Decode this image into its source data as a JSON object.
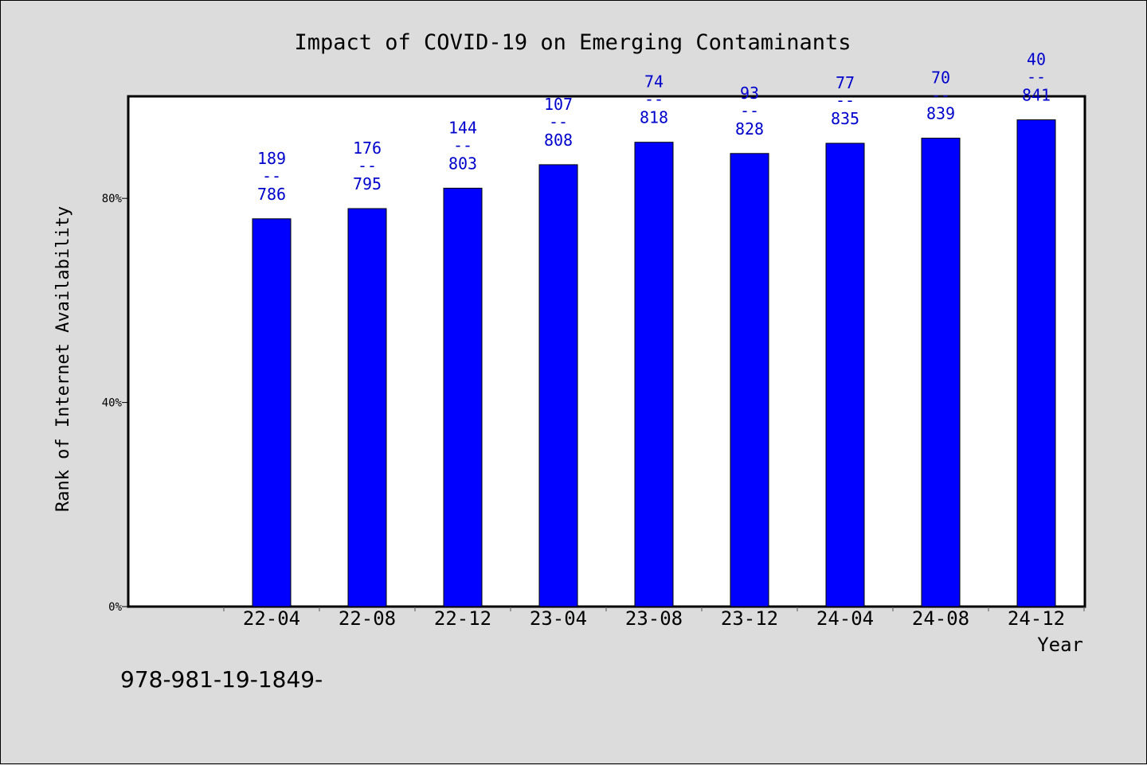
{
  "chart_data": {
    "type": "bar",
    "title": "Impact of COVID-19 on Emerging Contaminants",
    "xlabel": "Year",
    "ylabel": "Rank of Internet Availability",
    "categories": [
      "22-04",
      "22-08",
      "22-12",
      "23-04",
      "23-08",
      "23-12",
      "24-04",
      "24-08",
      "24-12"
    ],
    "values": [
      76,
      78,
      82,
      86.6,
      91,
      88.8,
      90.8,
      91.8,
      95.4
    ],
    "value_unit": "%",
    "data_labels_top": [
      "189",
      "176",
      "144",
      "107",
      "74",
      "93",
      "77",
      "70",
      "40"
    ],
    "data_labels_bottom": [
      "786",
      "795",
      "803",
      "808",
      "818",
      "828",
      "835",
      "839",
      "841"
    ],
    "data_label_separator": "--",
    "ylim": [
      0,
      100
    ],
    "yticks": [
      0,
      40,
      80
    ],
    "ytick_labels": [
      "0%",
      "40%",
      "80%"
    ],
    "bar_color": "#0000ff",
    "label_color": "#0000cc",
    "grid": false,
    "legend": "none"
  },
  "footer": {
    "code": "978-981-19-1849-"
  }
}
